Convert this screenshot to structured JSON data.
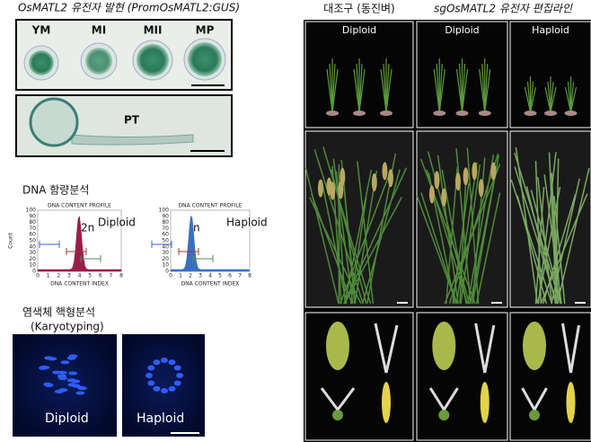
{
  "gus": {
    "title": "OsMATL2 유전자 발현 (PromOsMATL2:GUS)",
    "stages": [
      "YM",
      "MI",
      "MII",
      "MP"
    ],
    "tube_label": "PT"
  },
  "dna": {
    "title": "DNA 함량분석",
    "panels": [
      {
        "profile": "DNA CONTENT PROFILE",
        "label": "Diploid",
        "peak": "2n",
        "xlabel": "DNA CONTENT INDEX",
        "ylabel": "Count",
        "yticks": [
          0,
          10,
          20,
          30,
          40,
          50,
          60,
          70,
          80,
          90,
          100
        ],
        "xticks": [
          0,
          1,
          2,
          3,
          4,
          5,
          6,
          7,
          8
        ]
      },
      {
        "profile": "DNA CONTENT PROFILE",
        "label": "Haploid",
        "peak": "n",
        "xlabel": "DNA CONTENT INDEX",
        "yticks": [
          0,
          10,
          20,
          30,
          40,
          50,
          60,
          70,
          80,
          90,
          100
        ],
        "xticks": [
          0,
          1,
          2,
          3,
          4,
          5,
          6,
          7,
          8
        ]
      }
    ]
  },
  "karyo": {
    "title": "염색체 핵형분석",
    "subtitle": "(Karyotyping)",
    "panels": [
      "Diploid",
      "Haploid"
    ]
  },
  "plants": {
    "control": "대조구 (동진벼)",
    "edited": "sgOsMATL2 유전자 편집라인",
    "columns": [
      "Diploid",
      "Diploid",
      "Haploid"
    ]
  }
}
